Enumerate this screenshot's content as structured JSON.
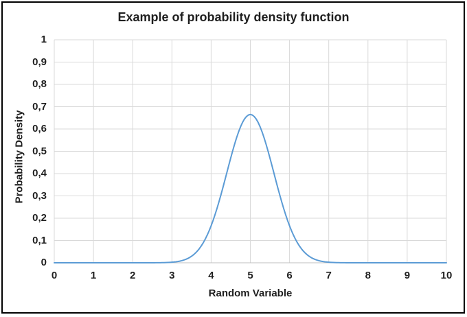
{
  "chart_data": {
    "type": "line",
    "title": "Example of probability density function",
    "xlabel": "Random Variable",
    "ylabel": "Probability Density",
    "xlim": [
      0,
      10
    ],
    "ylim": [
      0,
      1
    ],
    "x_tick_labels": [
      "0",
      "1",
      "2",
      "3",
      "4",
      "5",
      "6",
      "7",
      "8",
      "9",
      "10"
    ],
    "y_tick_labels": [
      "0",
      "0,1",
      "0,2",
      "0,3",
      "0,4",
      "0,5",
      "0,6",
      "0,7",
      "0,8",
      "0,9",
      "1"
    ],
    "grid": true,
    "legend": "none",
    "series": [
      {
        "name": "probability density",
        "function": "normal_pdf",
        "mean": 5,
        "sigma": 0.6,
        "peak_value": 0.665,
        "sample_points": {
          "x": [
            0,
            0.5,
            1,
            1.5,
            2,
            2.5,
            3,
            3.5,
            4,
            4.25,
            4.5,
            4.75,
            5,
            5.25,
            5.5,
            5.75,
            6,
            6.5,
            7,
            7.5,
            8,
            8.5,
            9,
            9.5,
            10
          ],
          "y": [
            0,
            0,
            0,
            0,
            0,
            0,
            0.0025,
            0.029,
            0.165,
            0.303,
            0.469,
            0.608,
            0.665,
            0.608,
            0.469,
            0.303,
            0.165,
            0.029,
            0.0025,
            0,
            0,
            0,
            0,
            0,
            0
          ]
        }
      }
    ],
    "colors": {
      "line": "#5B9BD5",
      "grid": "#D9D9D9",
      "axis_line": "#BFBFBF",
      "text": "#1f1f1f",
      "border": "#000000",
      "background": "#FFFFFF"
    }
  }
}
